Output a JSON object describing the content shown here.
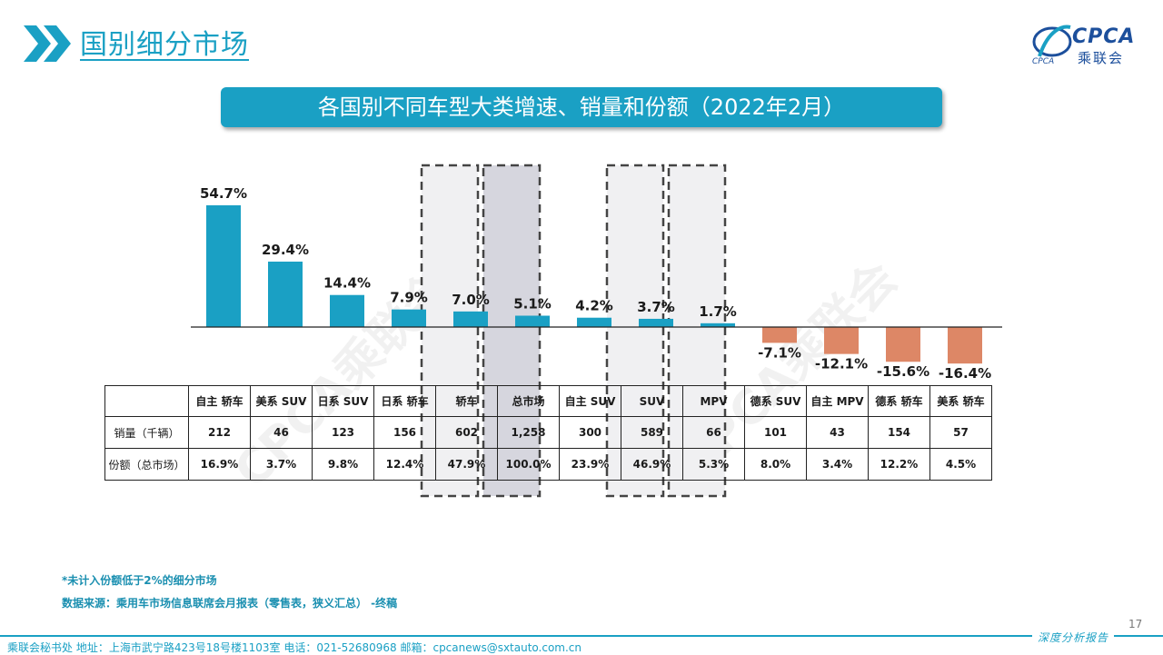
{
  "header": {
    "section_title": "国别细分市场"
  },
  "logo": {
    "en": "CPCA",
    "cn": "乘联会",
    "small": "CPCA"
  },
  "banner": {
    "title": "各国别不同车型大类增速、销量和份额（2022年2月）"
  },
  "watermark": {
    "text": "CPCA乘联会"
  },
  "chart_data": {
    "type": "bar",
    "categories": [
      "自主 轿车",
      "美系 SUV",
      "日系 SUV",
      "日系 轿车",
      "轿车",
      "总市场",
      "自主 SUV",
      "SUV",
      "MPV",
      "德系 SUV",
      "自主 MPV",
      "德系 轿车",
      "美系 轿车"
    ],
    "values": [
      54.7,
      29.4,
      14.4,
      7.9,
      7.0,
      5.1,
      4.2,
      3.7,
      1.7,
      -7.1,
      -12.1,
      -15.6,
      -16.4
    ],
    "value_labels": [
      "54.7%",
      "29.4%",
      "14.4%",
      "7.9%",
      "7.0%",
      "5.1%",
      "4.2%",
      "3.7%",
      "1.7%",
      "-7.1%",
      "-12.1%",
      "-15.6%",
      "-16.4%"
    ],
    "highlighted_categories": [
      "轿车",
      "总市场",
      "SUV",
      "MPV"
    ],
    "title": "各国别不同车型大类增速、销量和份额（2022年2月）",
    "xlabel": "",
    "ylabel": "",
    "colors": {
      "positive": "#1aa0c4",
      "negative": "#dd8766",
      "highlight_fill": "#f0f0f2",
      "total_fill": "#d6d6de",
      "highlight_border": "#444444"
    }
  },
  "table": {
    "rows": [
      {
        "label": "销量（千辆）",
        "values": [
          "212",
          "46",
          "123",
          "156",
          "602",
          "1,258",
          "300",
          "589",
          "66",
          "101",
          "43",
          "154",
          "57"
        ]
      },
      {
        "label": "份额（总市场）",
        "values": [
          "16.9%",
          "3.7%",
          "9.8%",
          "12.4%",
          "47.9%",
          "100.0%",
          "23.9%",
          "46.9%",
          "5.3%",
          "8.0%",
          "3.4%",
          "12.2%",
          "4.5%"
        ]
      }
    ]
  },
  "notes": {
    "note1": "*未计入份额低于2%的细分市场",
    "note2": "数据来源：乘用车市场信息联席会月报表（零售表，狭义汇总）  -终稿"
  },
  "footer": {
    "text": "乘联会秘书处   地址：上海市武宁路423号18号楼1103室   电话：021-52680968   邮箱：cpcanews@sxtauto.com.cn",
    "slogan": "深度分析报告",
    "page": "17"
  }
}
